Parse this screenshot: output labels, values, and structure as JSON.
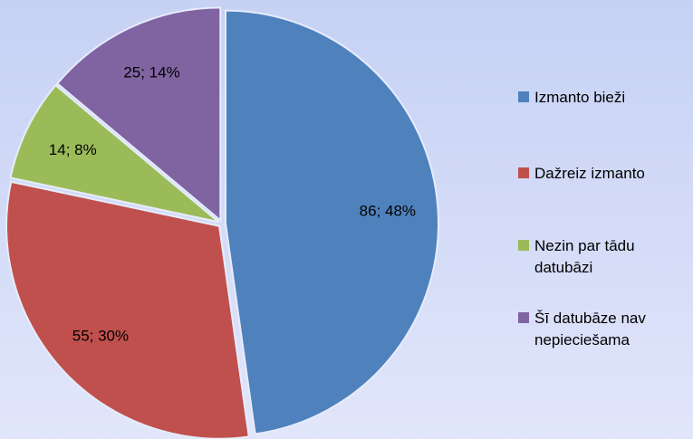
{
  "chart_data": {
    "type": "pie",
    "categories": [
      "Izmanto bieži",
      "Dažreiz izmanto",
      "Nezin par tādu datubāzi",
      "Šī datubāze nav nepieciešama"
    ],
    "values": [
      86,
      55,
      14,
      25
    ],
    "value_labels": [
      "86; 48%",
      "55; 30%",
      "14; 8%",
      "25; 14%"
    ],
    "colors": [
      "#4f81bd",
      "#c0504d",
      "#9bbb59",
      "#8064a2"
    ],
    "legend": "right"
  }
}
